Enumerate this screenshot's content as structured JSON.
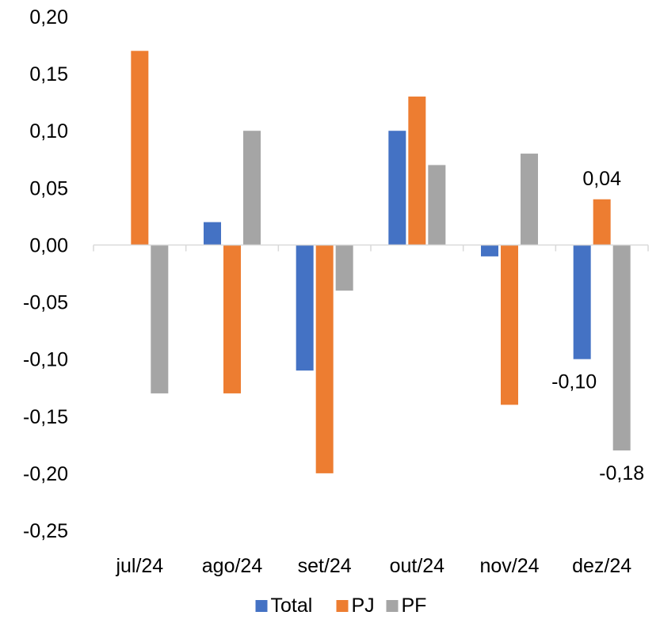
{
  "chart_data": {
    "type": "bar",
    "categories": [
      "jul/24",
      "ago/24",
      "set/24",
      "out/24",
      "nov/24",
      "dez/24"
    ],
    "series": [
      {
        "name": "Total",
        "color": "#4472C4",
        "values": [
          0.0,
          0.02,
          -0.11,
          0.1,
          -0.01,
          -0.1
        ]
      },
      {
        "name": "PJ",
        "color": "#ED7D31",
        "values": [
          0.17,
          -0.13,
          -0.2,
          0.13,
          -0.14,
          0.04
        ]
      },
      {
        "name": "PF",
        "color": "#A5A5A5",
        "values": [
          -0.13,
          0.1,
          -0.04,
          0.07,
          0.08,
          -0.18
        ]
      }
    ],
    "yticks": [
      "0,20",
      "0,15",
      "0,10",
      "0,05",
      "0,00",
      "-0,05",
      "-0,10",
      "-0,15",
      "-0,20",
      "-0,25"
    ],
    "ylim": [
      -0.25,
      0.2
    ],
    "data_labels": [
      {
        "series": "PJ",
        "category": "dez/24",
        "text": "0,04"
      },
      {
        "series": "Total",
        "category": "dez/24",
        "text": "-0,10"
      },
      {
        "series": "PF",
        "category": "dez/24",
        "text": "-0,18"
      }
    ],
    "legend_position": "bottom",
    "grid": false
  }
}
